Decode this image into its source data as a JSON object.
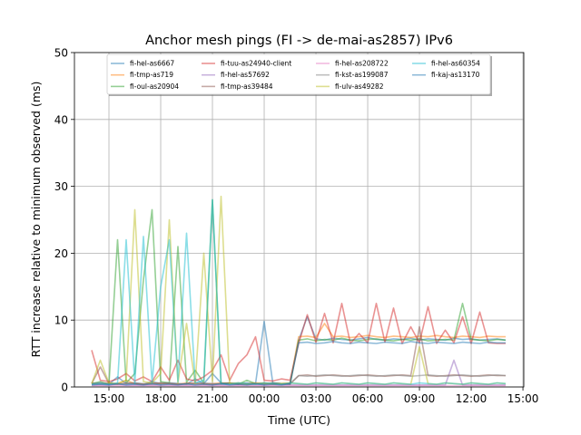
{
  "chart_data": {
    "type": "line",
    "title": "Anchor mesh pings (FI -> de-mai-as2857) IPv6",
    "xlabel": "Time (UTC)",
    "ylabel": "RTT increase relative to minimum observed (ms)",
    "x_unit": "hours since 00:00 of first day (sampled every 30 min from 14:00)",
    "x_start": 14,
    "x_step": 0.5,
    "xlim": [
      13,
      39.05
    ],
    "ylim": [
      0,
      50
    ],
    "xticks": [
      15,
      18,
      21,
      24,
      27,
      30,
      33,
      36,
      39
    ],
    "xtick_labels": [
      "15:00",
      "18:00",
      "21:00",
      "00:00",
      "03:00",
      "06:00",
      "09:00",
      "12:00",
      "15:00"
    ],
    "yticks": [
      0,
      10,
      20,
      30,
      40,
      50
    ],
    "ytick_labels": [
      "0",
      "10",
      "20",
      "30",
      "40",
      "50"
    ],
    "grid": true,
    "legend_placement": "top-center",
    "legend_columns": 4,
    "series": [
      {
        "name": "fi-hel-as6667",
        "color": "#1f77b4",
        "values": [
          0.5,
          0.6,
          0.4,
          1.5,
          0.5,
          0.6,
          0.4,
          0.8,
          0.5,
          0.6,
          0.5,
          0.4,
          1.2,
          0.5,
          2.0,
          0.6,
          0.5,
          0.4,
          0.6,
          0.5,
          9.8,
          0.6,
          0.5,
          0.4,
          7.0,
          10.5,
          7.2,
          7.0,
          7.3,
          7.1,
          7.0,
          7.2,
          7.4,
          7.1,
          7.0,
          7.2,
          7.1,
          7.3,
          7.0,
          7.2,
          7.1,
          7.0,
          7.3,
          7.1,
          7.2,
          7.0,
          7.1,
          7.2,
          7.0
        ]
      },
      {
        "name": "fi-tmp-as719",
        "color": "#ff7f0e",
        "values": [
          0.5,
          0.4,
          0.6,
          0.5,
          1.0,
          0.5,
          0.4,
          0.6,
          0.5,
          0.5,
          0.4,
          0.6,
          0.5,
          0.4,
          0.5,
          0.6,
          0.5,
          0.4,
          0.5,
          0.6,
          0.5,
          0.4,
          0.5,
          0.6,
          7.5,
          7.6,
          7.4,
          9.5,
          7.5,
          7.6,
          7.4,
          7.5,
          7.7,
          7.5,
          7.4,
          7.6,
          7.5,
          7.4,
          7.6,
          7.5,
          7.7,
          7.5,
          7.4,
          7.6,
          7.5,
          7.4,
          7.6,
          7.5,
          7.5
        ]
      },
      {
        "name": "fi-oul-as20904",
        "color": "#2ca02c",
        "values": [
          0.5,
          0.8,
          0.4,
          22.0,
          0.6,
          2.0,
          16.0,
          26.5,
          0.8,
          0.6,
          21.0,
          0.7,
          2.5,
          0.6,
          28.0,
          0.5,
          0.6,
          0.4,
          1.0,
          0.5,
          0.4,
          0.6,
          0.5,
          0.4,
          7.0,
          7.2,
          6.9,
          7.1,
          7.0,
          7.3,
          7.0,
          6.9,
          7.1,
          7.2,
          7.0,
          6.9,
          7.1,
          7.0,
          7.2,
          6.9,
          7.0,
          7.1,
          7.0,
          12.5,
          7.1,
          7.0,
          6.9,
          7.1,
          7.0
        ]
      },
      {
        "name": "fi-tuu-as24940-client",
        "color": "#d62728",
        "values": [
          5.5,
          1.0,
          0.8,
          1.2,
          2.0,
          0.9,
          1.5,
          0.8,
          3.0,
          1.0,
          4.0,
          1.2,
          0.9,
          1.5,
          2.5,
          4.8,
          1.0,
          3.5,
          4.8,
          7.5,
          1.0,
          0.9,
          1.2,
          1.0,
          6.5,
          10.8,
          6.7,
          11.0,
          6.6,
          12.5,
          6.5,
          8.0,
          6.6,
          12.5,
          6.7,
          11.8,
          6.5,
          9.0,
          6.6,
          12.0,
          6.5,
          8.5,
          6.6,
          10.5,
          6.5,
          11.2,
          6.6,
          6.5,
          6.5
        ]
      },
      {
        "name": "fi-hel-as57692",
        "color": "#9467bd",
        "values": [
          0.3,
          0.3,
          0.3,
          0.4,
          0.3,
          0.3,
          0.3,
          0.3,
          0.3,
          0.3,
          0.3,
          0.3,
          0.3,
          0.3,
          0.3,
          0.3,
          0.3,
          0.3,
          0.3,
          0.3,
          0.3,
          0.3,
          0.3,
          0.3,
          0.3,
          0.3,
          0.3,
          0.3,
          0.3,
          0.3,
          0.3,
          0.3,
          0.3,
          0.3,
          0.3,
          0.3,
          0.3,
          0.3,
          0.3,
          0.3,
          0.3,
          0.3,
          4.0,
          0.3,
          0.3,
          0.3,
          0.3,
          0.3,
          0.3
        ]
      },
      {
        "name": "fi-tmp-as39484",
        "color": "#8c564b",
        "values": [
          0.5,
          3.0,
          0.5,
          0.4,
          0.6,
          0.5,
          0.4,
          0.5,
          0.6,
          0.5,
          0.4,
          0.5,
          0.6,
          0.5,
          0.4,
          0.5,
          0.6,
          0.5,
          0.4,
          0.5,
          0.6,
          0.5,
          0.4,
          0.5,
          1.7,
          1.8,
          1.6,
          1.7,
          1.8,
          1.7,
          1.6,
          1.7,
          1.8,
          1.7,
          1.6,
          1.7,
          1.8,
          1.7,
          9.0,
          1.7,
          1.6,
          1.7,
          1.8,
          1.7,
          1.6,
          1.7,
          1.8,
          1.7,
          1.7
        ]
      },
      {
        "name": "fi-hel-as208722",
        "color": "#e377c2",
        "values": [
          0.2,
          0.2,
          0.2,
          0.2,
          0.2,
          0.2,
          0.2,
          0.2,
          0.2,
          0.2,
          0.2,
          0.2,
          0.2,
          0.2,
          0.2,
          0.2,
          0.2,
          0.2,
          0.2,
          0.2,
          0.2,
          0.2,
          0.2,
          0.2,
          0.2,
          0.2,
          0.2,
          0.2,
          0.2,
          0.2,
          0.2,
          0.2,
          0.2,
          0.2,
          0.2,
          0.2,
          0.2,
          0.2,
          0.2,
          0.2,
          0.2,
          0.2,
          0.2,
          0.2,
          0.2,
          0.2,
          0.2,
          0.2,
          0.2
        ]
      },
      {
        "name": "fi-kst-as199087",
        "color": "#7f7f7f",
        "values": [
          0.5,
          0.6,
          0.5,
          0.4,
          0.5,
          0.6,
          0.5,
          0.4,
          0.5,
          0.6,
          0.5,
          0.4,
          0.5,
          0.6,
          0.5,
          0.4,
          0.5,
          0.6,
          0.5,
          0.4,
          0.5,
          0.6,
          0.5,
          0.4,
          1.7,
          1.6,
          1.7,
          1.8,
          1.7,
          1.6,
          1.7,
          1.8,
          1.7,
          1.6,
          1.7,
          1.8,
          1.7,
          1.6,
          1.7,
          1.8,
          1.7,
          1.6,
          1.7,
          1.8,
          1.7,
          1.6,
          1.7,
          1.8,
          1.7
        ]
      },
      {
        "name": "fi-ulv-as49282",
        "color": "#bcbd22",
        "values": [
          0.5,
          4.0,
          0.6,
          0.5,
          1.0,
          26.5,
          0.8,
          0.6,
          2.0,
          25.0,
          0.6,
          9.5,
          0.5,
          20.0,
          0.8,
          28.5,
          0.5,
          0.6,
          0.4,
          0.5,
          0.6,
          0.4,
          0.5,
          0.6,
          0.5,
          0.4,
          0.6,
          0.5,
          0.4,
          0.6,
          0.5,
          0.4,
          0.6,
          0.5,
          0.4,
          0.6,
          0.5,
          0.4,
          6.0,
          0.5,
          0.4,
          0.6,
          0.5,
          0.4,
          0.6,
          0.5,
          0.4,
          0.6,
          0.5
        ]
      },
      {
        "name": "fi-hel-as60354",
        "color": "#17becf",
        "values": [
          0.4,
          0.5,
          0.4,
          0.6,
          22.0,
          0.5,
          22.5,
          0.6,
          15.0,
          22.0,
          0.8,
          23.0,
          0.6,
          1.0,
          28.0,
          0.5,
          0.4,
          0.6,
          0.5,
          0.4,
          0.6,
          0.5,
          0.4,
          0.6,
          0.5,
          0.4,
          0.6,
          0.5,
          0.4,
          0.6,
          0.5,
          0.4,
          0.6,
          0.5,
          0.4,
          0.6,
          0.5,
          0.4,
          0.6,
          0.5,
          0.4,
          0.6,
          0.5,
          0.4,
          0.6,
          0.5,
          0.4,
          0.6,
          0.5
        ]
      },
      {
        "name": "fi-kaj-as13170",
        "color": "#1f77b4",
        "values": [
          0.3,
          0.4,
          0.3,
          0.5,
          0.3,
          0.4,
          0.3,
          0.5,
          0.3,
          0.4,
          0.3,
          0.5,
          0.3,
          0.4,
          0.3,
          0.5,
          0.3,
          0.4,
          0.3,
          0.5,
          0.3,
          0.4,
          0.3,
          0.5,
          6.6,
          6.7,
          6.5,
          6.6,
          6.8,
          6.6,
          6.5,
          6.7,
          6.6,
          6.5,
          6.7,
          6.6,
          6.5,
          6.8,
          6.6,
          6.5,
          6.7,
          6.6,
          6.5,
          6.7,
          6.6,
          6.5,
          6.7,
          6.6,
          6.6
        ]
      }
    ]
  }
}
